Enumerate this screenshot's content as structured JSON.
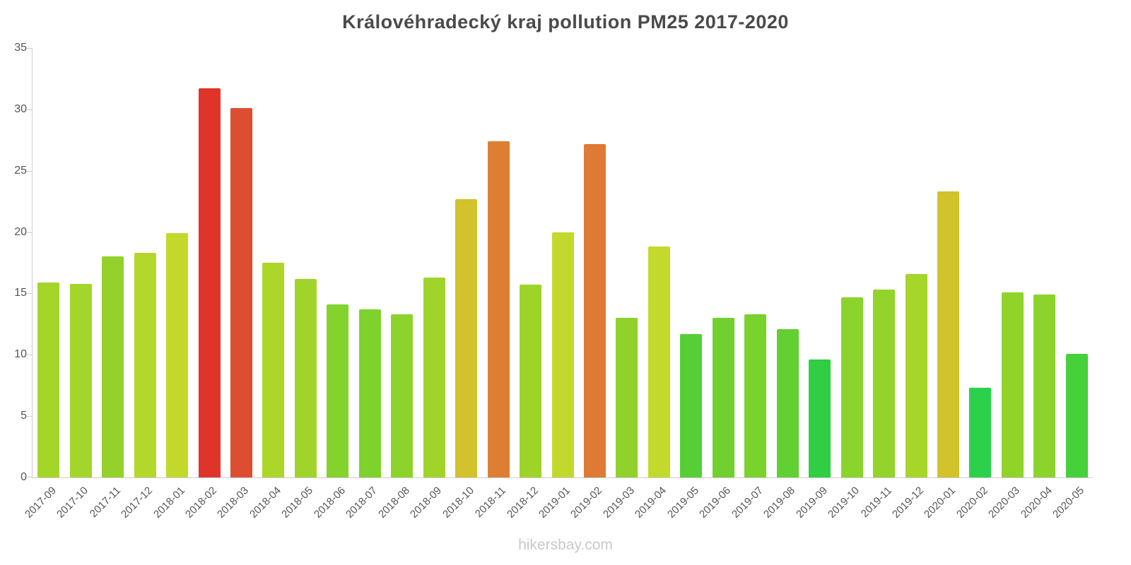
{
  "chart_data": {
    "type": "bar",
    "title": "Královéhradecký kraj pollution PM25 2017-2020",
    "xlabel": "",
    "ylabel": "",
    "ylim": [
      0,
      35
    ],
    "yticks": [
      0,
      5,
      10,
      15,
      20,
      25,
      30,
      35
    ],
    "grid": false,
    "legend": "none",
    "categories": [
      "2017-09",
      "2017-10",
      "2017-11",
      "2017-12",
      "2018-01",
      "2018-02",
      "2018-03",
      "2018-04",
      "2018-05",
      "2018-06",
      "2018-07",
      "2018-08",
      "2018-09",
      "2018-10",
      "2018-11",
      "2018-12",
      "2019-01",
      "2019-02",
      "2019-03",
      "2019-04",
      "2019-05",
      "2019-06",
      "2019-07",
      "2019-08",
      "2019-09",
      "2019-10",
      "2019-11",
      "2019-12",
      "2020-01",
      "2020-02",
      "2020-03",
      "2020-04",
      "2020-05"
    ],
    "values": [
      15.9,
      15.8,
      18.0,
      18.3,
      19.9,
      31.7,
      30.1,
      17.5,
      16.2,
      14.1,
      13.7,
      13.3,
      16.3,
      22.7,
      27.4,
      15.7,
      20.0,
      27.2,
      13.0,
      18.8,
      11.7,
      13.0,
      13.3,
      12.1,
      9.6,
      14.7,
      15.3,
      16.6,
      23.3,
      7.3,
      15.1,
      14.9,
      10.1
    ],
    "colors": [
      "#a4d62a",
      "#a2d62a",
      "#94d22b",
      "#b4d72b",
      "#c2d92c",
      "#e0342b",
      "#dd4e30",
      "#acd62a",
      "#a0d42a",
      "#84d22c",
      "#7ed22c",
      "#8cd42b",
      "#a0d42a",
      "#d2c22c",
      "#de7e33",
      "#9ed42a",
      "#c2d92c",
      "#de7a33",
      "#90d22b",
      "#c4d92d",
      "#55cf35",
      "#70d030",
      "#7ad22d",
      "#62d032",
      "#2fce43",
      "#8ad42b",
      "#92d42a",
      "#a6d62a",
      "#d2c22c",
      "#2bd14a",
      "#90d42a",
      "#8cd42b",
      "#46d13b"
    ]
  },
  "footer": {
    "text": "hikersbay.com"
  }
}
